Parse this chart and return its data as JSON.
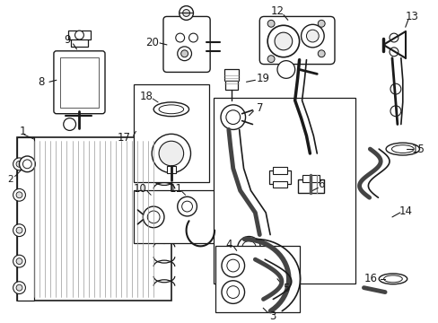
{
  "bg_color": "#ffffff",
  "line_color": "#1a1a1a",
  "fig_width": 4.89,
  "fig_height": 3.6,
  "dpi": 100,
  "label_fs": 7.5,
  "label_fs_big": 8.5
}
